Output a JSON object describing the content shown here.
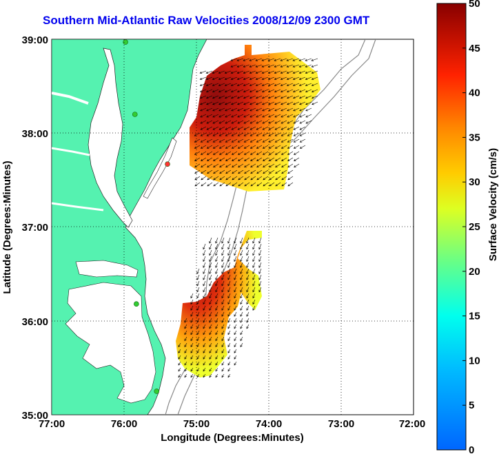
{
  "title": "Southern Mid-Atlantic Raw Velocities 2008/12/09 2300 GMT",
  "xlabel": "Longitude (Degrees:Minutes)",
  "ylabel": "Latitude (Degrees:Minutes)",
  "x_ticks": [
    "77:00",
    "76:00",
    "75:00",
    "74:00",
    "73:00",
    "72:00"
  ],
  "y_ticks": [
    "39:00",
    "38:00",
    "37:00",
    "36:00",
    "35:00"
  ],
  "colorbar": {
    "label": "Surface Velocity (cm/s)",
    "ticks": [
      "0",
      "5",
      "10",
      "15",
      "20",
      "25",
      "30",
      "35",
      "40",
      "45",
      "50"
    ]
  },
  "colors": {
    "land": "#55f2b0",
    "title": "#0000ee",
    "station": "#33cc33",
    "station_alt": "#ff3333"
  },
  "map": {
    "lon_range": [
      -77,
      -72
    ],
    "lat_range": [
      35,
      39
    ],
    "projection": "lat-lon",
    "grid": "dotted",
    "stations": [
      {
        "lon": -75.98,
        "lat": 38.97,
        "color": "green"
      },
      {
        "lon": -75.85,
        "lat": 38.2,
        "color": "green"
      },
      {
        "lon": -75.4,
        "lat": 37.67,
        "color": "red"
      },
      {
        "lon": -75.83,
        "lat": 36.18,
        "color": "green"
      },
      {
        "lon": -75.55,
        "lat": 35.25,
        "color": "green"
      }
    ]
  }
}
